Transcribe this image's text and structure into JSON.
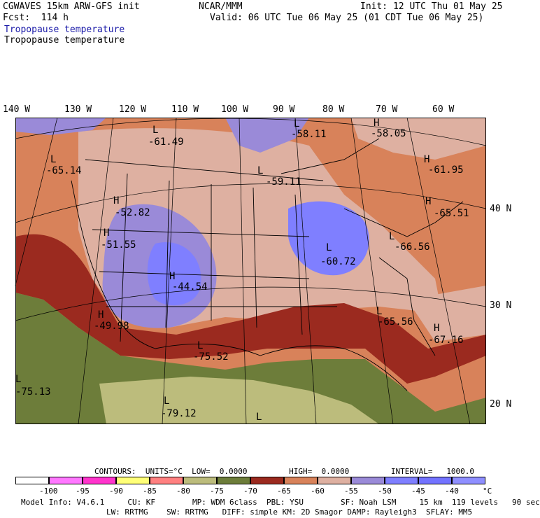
{
  "header": {
    "model": "CGWAVES 15km ARW-GFS init",
    "fcst": "Fcst:  114 h",
    "center": "NCAR/MMM",
    "init": "Init: 12 UTC Thu 01 May 25",
    "valid": "Valid: 06 UTC Tue 06 May 25 (01 CDT Tue 06 May 25)",
    "field1": "Tropopause temperature",
    "field2": "Tropopause temperature"
  },
  "longitude_labels": [
    "140 W",
    "130 W",
    "120 W",
    "110 W",
    "100 W",
    "90 W",
    "80 W",
    "70 W",
    "60 W"
  ],
  "latitude_labels": [
    "40 N",
    "30 N",
    "20 N"
  ],
  "extrema": [
    {
      "type": "L",
      "value": "-61.49"
    },
    {
      "type": "L",
      "value": "-58.11"
    },
    {
      "type": "H",
      "value": "-58.05"
    },
    {
      "type": "L",
      "value": "-65.14"
    },
    {
      "type": "L",
      "value": "-59.11"
    },
    {
      "type": "H",
      "value": "-61.95"
    },
    {
      "type": "H",
      "value": "-52.82"
    },
    {
      "type": "H",
      "value": "-65.51"
    },
    {
      "type": "H",
      "value": "-51.55"
    },
    {
      "type": "L",
      "value": "-60.72"
    },
    {
      "type": "L",
      "value": "-66.56"
    },
    {
      "type": "H",
      "value": "-44.54"
    },
    {
      "type": "H",
      "value": "-49.98"
    },
    {
      "type": "L",
      "value": "-65.56"
    },
    {
      "type": "H",
      "value": "-67.16"
    },
    {
      "type": "L",
      "value": "-75.52"
    },
    {
      "type": "L",
      "value": "-75.13"
    },
    {
      "type": "L",
      "value": "-79.12"
    },
    {
      "type": "L",
      "value": ""
    }
  ],
  "contours": {
    "text": "CONTOURS:  UNITS=°C  LOW=  0.0000         HIGH=  0.0000         INTERVAL=   1000.0"
  },
  "legend": {
    "colors": [
      "#ffffff",
      "#ff77ff",
      "#ff33cc",
      "#ffff77",
      "#ff8080",
      "#bcbc7c",
      "#6d7d3a",
      "#9b2a1f",
      "#d8825a",
      "#deb0a1",
      "#9a8ad8",
      "#7f7fff",
      "#7373ff",
      "#8f8fff"
    ],
    "ticks": [
      "-100",
      "-95",
      "-90",
      "-85",
      "-80",
      "-75",
      "-70",
      "-65",
      "-60",
      "-55",
      "-50",
      "-45",
      "-40",
      "°C"
    ]
  },
  "model_info": {
    "line1": "Model Info: V4.6.1     CU: KF        MP: WDM 6class  PBL: YSU        SF: Noah LSM     15 km  119 levels   90 sec",
    "line2": "LW: RRTMG    SW: RRTMG   DIFF: simple KM: 2D Smagor DAMP: Rayleigh3  SFLAY: MM5"
  }
}
